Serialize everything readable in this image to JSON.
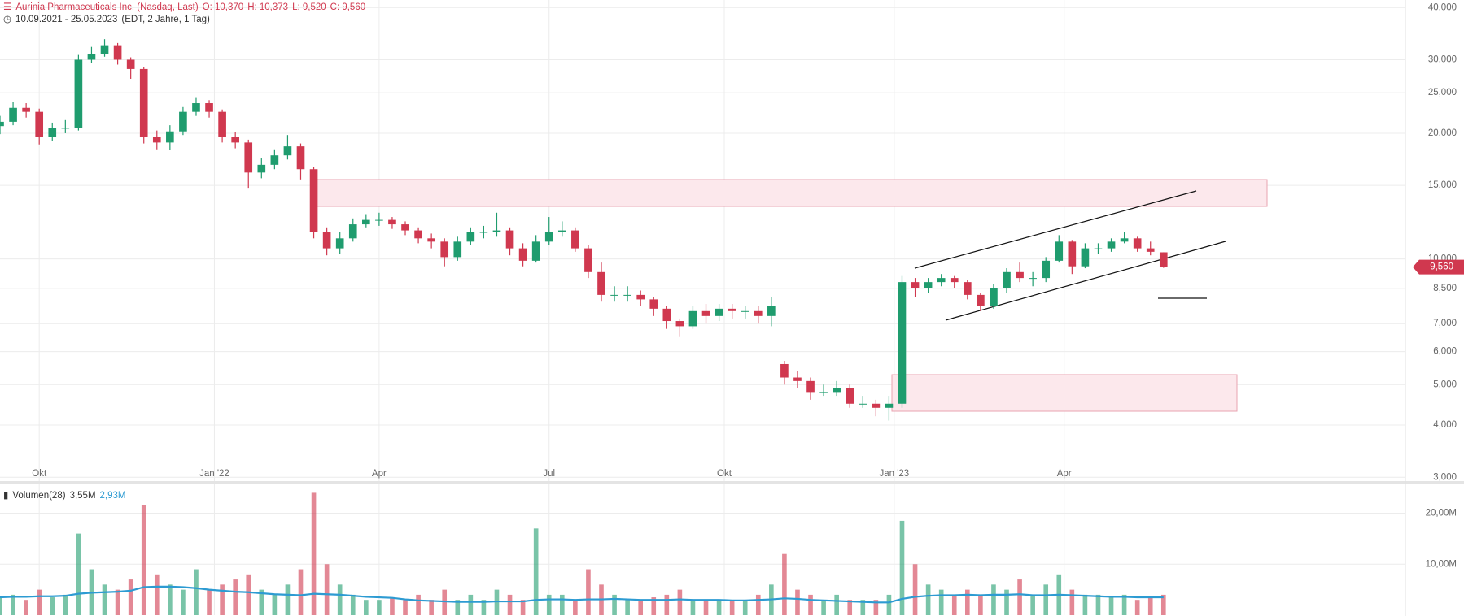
{
  "chart_data": [
    {
      "type": "candlestick",
      "title": "Aurinia Pharmaceuticals Inc. (Nasdaq, Last)",
      "ohlc_labels": [
        "O: 10,370",
        "H: 10,373",
        "L: 9,520",
        "C: 9,560"
      ],
      "subtitle": "10.09.2021 - 25.05.2023",
      "subtitle_note": "(EDT, 2 Jahre, 1 Tag)",
      "x": [
        0,
        1,
        2,
        3,
        4,
        5,
        6,
        7,
        8,
        9,
        10,
        11,
        12,
        13,
        14,
        15,
        16,
        17,
        18,
        19,
        20,
        21,
        22,
        23,
        24,
        25,
        26,
        27,
        28,
        29,
        30,
        31,
        32,
        33,
        34,
        35,
        36,
        37,
        38,
        39,
        40,
        41,
        42,
        43,
        44,
        45,
        46,
        47,
        48,
        49,
        50,
        51,
        52,
        53,
        54,
        55,
        56,
        57,
        58,
        59,
        60,
        61,
        62,
        63,
        64,
        65,
        66,
        67,
        68,
        69,
        70,
        71,
        72,
        73,
        74,
        75,
        76,
        77,
        78,
        79,
        80,
        81,
        82,
        83,
        84,
        85,
        86,
        87,
        88,
        89
      ],
      "open": [
        20.8,
        21.3,
        23.0,
        22.5,
        19.6,
        20.6,
        20.6,
        30.0,
        31.0,
        32.5,
        30.0,
        28.5,
        19.6,
        19.0,
        20.2,
        22.5,
        23.6,
        22.5,
        19.6,
        19.0,
        16.1,
        16.8,
        17.7,
        18.6,
        16.4,
        11.6,
        10.6,
        11.2,
        12.1,
        12.4,
        12.4,
        12.1,
        11.7,
        11.2,
        11.0,
        10.1,
        11.0,
        11.6,
        11.6,
        11.7,
        10.6,
        9.9,
        11.0,
        11.6,
        11.7,
        10.6,
        9.3,
        8.2,
        8.2,
        8.2,
        8.0,
        7.6,
        7.1,
        6.9,
        7.5,
        7.3,
        7.6,
        7.5,
        7.5,
        7.3,
        5.6,
        5.2,
        5.1,
        4.8,
        4.8,
        4.9,
        4.5,
        4.5,
        4.4,
        4.5,
        8.8,
        8.5,
        8.8,
        9.0,
        8.8,
        8.2,
        7.7,
        8.5,
        9.3,
        9.0,
        9.0,
        9.9,
        11.0,
        9.6,
        10.6,
        10.6,
        11.0,
        11.2,
        10.6,
        10.37
      ],
      "high": [
        22.0,
        23.8,
        23.6,
        22.9,
        21.2,
        21.5,
        30.8,
        32.2,
        33.6,
        32.9,
        30.4,
        28.8,
        20.3,
        20.9,
        23.1,
        24.4,
        24.0,
        22.8,
        20.1,
        19.3,
        17.4,
        18.3,
        19.8,
        18.9,
        16.6,
        11.9,
        11.6,
        12.5,
        12.8,
        12.9,
        12.6,
        12.3,
        11.9,
        11.5,
        11.2,
        11.3,
        11.9,
        12.0,
        12.9,
        11.9,
        10.9,
        11.4,
        12.6,
        12.3,
        11.9,
        10.8,
        9.8,
        8.6,
        8.6,
        8.4,
        8.1,
        7.7,
        7.2,
        7.7,
        7.8,
        7.8,
        7.8,
        7.7,
        7.7,
        8.1,
        5.7,
        5.4,
        5.2,
        5.0,
        5.1,
        5.0,
        4.7,
        4.6,
        4.7,
        9.1,
        9.0,
        9.0,
        9.2,
        9.1,
        8.9,
        8.3,
        8.7,
        9.5,
        9.8,
        9.3,
        10.1,
        11.4,
        11.1,
        10.9,
        10.9,
        11.2,
        11.6,
        11.3,
        11.0,
        10.373
      ],
      "low": [
        19.9,
        20.9,
        21.8,
        18.8,
        19.2,
        20.0,
        20.3,
        29.4,
        30.5,
        29.2,
        27.0,
        18.9,
        18.3,
        18.2,
        19.8,
        22.0,
        21.8,
        19.0,
        18.4,
        14.8,
        15.6,
        16.4,
        17.3,
        15.5,
        11.2,
        10.2,
        10.3,
        11.0,
        11.9,
        12.0,
        11.8,
        11.4,
        10.9,
        10.6,
        9.6,
        9.9,
        10.8,
        11.2,
        11.3,
        10.2,
        9.6,
        9.8,
        10.8,
        11.3,
        10.4,
        9.0,
        7.9,
        7.9,
        7.9,
        7.7,
        7.3,
        6.8,
        6.5,
        6.8,
        7.0,
        7.1,
        7.2,
        7.2,
        7.0,
        6.9,
        5.0,
        4.9,
        4.6,
        4.7,
        4.7,
        4.4,
        4.4,
        4.2,
        4.1,
        4.4,
        8.1,
        8.3,
        8.6,
        8.5,
        8.0,
        7.5,
        7.6,
        8.3,
        8.8,
        8.6,
        8.8,
        9.8,
        9.2,
        9.5,
        10.3,
        10.4,
        10.9,
        10.4,
        10.2,
        9.52
      ],
      "close": [
        21.3,
        23.0,
        22.5,
        19.6,
        20.6,
        20.6,
        30.0,
        31.0,
        32.5,
        30.0,
        28.5,
        19.6,
        19.0,
        20.2,
        22.5,
        23.6,
        22.5,
        19.6,
        19.0,
        16.1,
        16.8,
        17.7,
        18.6,
        16.4,
        11.6,
        10.6,
        11.2,
        12.1,
        12.4,
        12.4,
        12.1,
        11.7,
        11.2,
        11.0,
        10.1,
        11.0,
        11.6,
        11.6,
        11.7,
        10.6,
        9.9,
        11.0,
        11.6,
        11.7,
        10.6,
        9.3,
        8.2,
        8.2,
        8.2,
        8.0,
        7.6,
        7.1,
        6.9,
        7.5,
        7.3,
        7.6,
        7.5,
        7.5,
        7.3,
        7.7,
        5.2,
        5.1,
        4.8,
        4.8,
        4.9,
        4.5,
        4.5,
        4.4,
        4.5,
        8.8,
        8.5,
        8.8,
        9.0,
        8.8,
        8.2,
        7.7,
        8.5,
        9.3,
        9.0,
        9.0,
        9.9,
        11.0,
        9.6,
        10.6,
        10.6,
        11.0,
        11.2,
        10.6,
        10.4,
        9.56
      ],
      "up_color": "#1f9c6e",
      "down_color": "#d0384f",
      "xlim": [
        0,
        107.5
      ],
      "xticks": [
        {
          "value": 3,
          "label": "Okt"
        },
        {
          "value": 16.4,
          "label": "Jan '22"
        },
        {
          "value": 29,
          "label": "Apr"
        },
        {
          "value": 42,
          "label": "Jul"
        },
        {
          "value": 55.4,
          "label": "Okt"
        },
        {
          "value": 68.4,
          "label": "Jan '23"
        },
        {
          "value": 81.4,
          "label": "Apr"
        }
      ],
      "ylim": [
        2.95,
        41.7
      ],
      "log_scale": true,
      "grid": true,
      "yticks": [
        {
          "value": 3,
          "label": "3,000"
        },
        {
          "value": 4,
          "label": "4,000"
        },
        {
          "value": 5,
          "label": "5,000"
        },
        {
          "value": 6,
          "label": "6,000"
        },
        {
          "value": 7,
          "label": "7,000"
        },
        {
          "value": 8.5,
          "label": "8,500"
        },
        {
          "value": 10,
          "label": "10,000"
        },
        {
          "value": 15,
          "label": "15,000"
        },
        {
          "value": 20,
          "label": "20,000"
        },
        {
          "value": 25,
          "label": "25,000"
        },
        {
          "value": 30,
          "label": "30,000"
        },
        {
          "value": 40,
          "label": "40,000"
        }
      ],
      "last_price": {
        "value": 9.56,
        "label": "9,560"
      }
    },
    {
      "type": "volume",
      "title": "Volumen(28)",
      "legend_values": [
        "3,55M",
        "2,93M"
      ],
      "values": [
        3.5,
        4,
        3,
        5,
        3.5,
        4,
        16,
        9,
        6,
        5,
        7,
        21.6,
        8,
        6,
        5,
        9,
        5,
        6,
        7,
        8,
        5,
        4,
        6,
        9,
        24,
        10,
        6,
        4,
        3,
        3,
        3.5,
        3,
        4,
        3,
        5,
        3,
        4,
        3,
        5,
        4,
        3,
        17,
        4,
        4,
        3,
        9,
        6,
        4,
        3,
        3,
        3.5,
        4,
        5,
        3,
        3,
        3,
        3,
        3,
        4,
        6,
        12,
        5,
        4,
        3,
        4,
        3,
        3,
        3,
        4,
        18.5,
        10,
        6,
        5,
        4,
        5,
        4,
        6,
        5,
        7,
        4,
        6,
        8,
        5,
        4,
        4,
        3.5,
        4,
        3,
        3.5,
        4
      ],
      "ma": [
        3.5,
        3.6,
        3.6,
        3.7,
        3.7,
        3.8,
        4.2,
        4.4,
        4.5,
        4.6,
        4.8,
        5.5,
        5.6,
        5.6,
        5.5,
        5.3,
        5.0,
        4.8,
        4.6,
        4.5,
        4.3,
        4.1,
        4.0,
        3.9,
        4.2,
        4.1,
        4.0,
        3.8,
        3.6,
        3.5,
        3.4,
        3.1,
        2.9,
        2.8,
        2.7,
        2.6,
        2.6,
        2.6,
        2.7,
        2.7,
        2.7,
        3.0,
        3.1,
        3.1,
        3.0,
        3.1,
        3.1,
        3.2,
        3.1,
        3.0,
        3.0,
        3.0,
        3.1,
        3.0,
        3.0,
        3.0,
        2.9,
        2.9,
        3.0,
        3.1,
        3.3,
        3.2,
        3.0,
        2.9,
        2.8,
        2.7,
        2.6,
        2.5,
        2.5,
        3.2,
        3.6,
        3.8,
        3.9,
        3.9,
        4.0,
        3.9,
        4.0,
        4.0,
        4.1,
        3.9,
        3.9,
        4.0,
        3.9,
        3.8,
        3.7,
        3.6,
        3.6,
        3.5,
        3.5,
        3.5
      ],
      "color": "#2d9bd2",
      "ylim": [
        0,
        25.5
      ],
      "yticks": [
        {
          "value": 10,
          "label": "10,00M"
        },
        {
          "value": 20,
          "label": "20,00M"
        }
      ]
    }
  ]
}
